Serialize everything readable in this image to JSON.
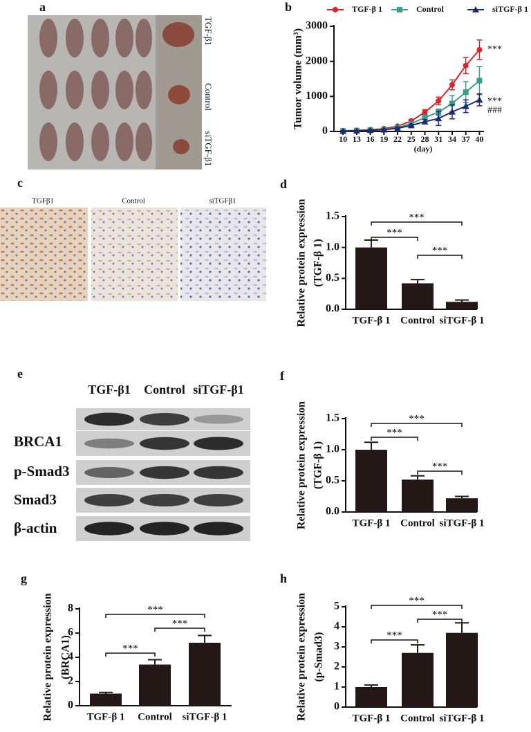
{
  "figure": {
    "a": {
      "letter": "a",
      "labels": [
        "TGF-β1",
        "Control",
        "siTGF-β1"
      ]
    },
    "c": {
      "letter": "c",
      "labels": [
        "TGFβ1",
        "Control",
        "siTGFβ1"
      ]
    },
    "e": {
      "letter": "e",
      "columns": [
        "TGF-β1",
        "Control",
        "siTGF-β1"
      ],
      "rows": [
        "BRCA1",
        "p-Smad3",
        "Smad3",
        "β-actin"
      ]
    }
  },
  "chart_data": [
    {
      "type": "line",
      "panel": "b",
      "ylabel": [
        "Tumor volume (mm³)"
      ],
      "xlabel": "(day)",
      "x": [
        10,
        13,
        16,
        19,
        22,
        25,
        28,
        31,
        34,
        37,
        40
      ],
      "xlim": [
        8,
        41
      ],
      "xticks": [
        10,
        13,
        16,
        19,
        22,
        25,
        28,
        31,
        34,
        37,
        40
      ],
      "ylim": [
        0,
        3000
      ],
      "yticks": [
        0,
        1000,
        2000,
        3000
      ],
      "series": [
        {
          "name": "TGF-β 1",
          "color": "#d7262b",
          "marker": "circle",
          "values": [
            20,
            30,
            50,
            80,
            150,
            300,
            550,
            870,
            1330,
            1880,
            2330
          ],
          "errors": [
            10,
            10,
            15,
            20,
            30,
            40,
            70,
            110,
            140,
            230,
            280
          ]
        },
        {
          "name": "Control",
          "color": "#3a9c8c",
          "marker": "square",
          "values": [
            15,
            25,
            40,
            60,
            110,
            220,
            400,
            550,
            800,
            1120,
            1450
          ],
          "errors": [
            10,
            10,
            15,
            20,
            30,
            40,
            60,
            90,
            220,
            300,
            400
          ]
        },
        {
          "name": "siTGF-β 1",
          "color": "#1e2a6e",
          "marker": "triangle",
          "values": [
            10,
            20,
            35,
            50,
            90,
            170,
            280,
            370,
            560,
            720,
            900
          ],
          "errors": [
            10,
            10,
            15,
            20,
            30,
            40,
            60,
            200,
            200,
            180,
            170
          ]
        }
      ],
      "annotations": [
        "***",
        "***",
        "###"
      ]
    },
    {
      "type": "bar",
      "panel": "d",
      "ylabel": [
        "Relative protein expression",
        "(TGF-β 1)"
      ],
      "categories": [
        "TGF-β 1",
        "Control",
        "siTGF-β 1"
      ],
      "values": [
        1.0,
        0.42,
        0.12
      ],
      "errors": [
        0.12,
        0.06,
        0.03
      ],
      "color": "#231815",
      "ylim": [
        0,
        1.5
      ],
      "yticks": [
        {
          "value": 0,
          "label": "0.0"
        },
        0.5,
        {
          "value": 1,
          "label": "1.0"
        },
        1.5
      ],
      "annotations": [
        "***",
        "***",
        "***"
      ]
    },
    {
      "type": "bar",
      "panel": "f",
      "ylabel": [
        "Relative protein expression",
        "(TGF-β 1)"
      ],
      "categories": [
        "TGF-β 1",
        "Control",
        "siTGF-β 1"
      ],
      "values": [
        1.0,
        0.52,
        0.22
      ],
      "errors": [
        0.12,
        0.06,
        0.03
      ],
      "color": "#231815",
      "ylim": [
        0,
        1.5
      ],
      "yticks": [
        {
          "value": 0,
          "label": "0.0"
        },
        0.5,
        {
          "value": 1,
          "label": "1.0"
        },
        1.5
      ],
      "annotations": [
        "***",
        "***",
        "***"
      ]
    },
    {
      "type": "bar",
      "panel": "g",
      "ylabel": [
        "Relative protein expression",
        "(BRCA1)"
      ],
      "categories": [
        "TGF-β 1",
        "Control",
        "siTGF-β 1"
      ],
      "values": [
        1.0,
        3.4,
        5.2
      ],
      "errors": [
        0.1,
        0.4,
        0.6
      ],
      "color": "#231815",
      "ylim": [
        0,
        8
      ],
      "yticks": [
        0,
        2,
        4,
        6,
        8
      ],
      "annotations": [
        "***",
        "***",
        "***"
      ]
    },
    {
      "type": "bar",
      "panel": "h",
      "ylabel": [
        "Relative protein expression",
        "(p-Smad3)"
      ],
      "categories": [
        "TGF-β 1",
        "Control",
        "siTGF-β 1"
      ],
      "values": [
        1.0,
        2.7,
        3.7
      ],
      "errors": [
        0.1,
        0.4,
        0.5
      ],
      "color": "#231815",
      "ylim": [
        0,
        5
      ],
      "yticks": [
        0,
        1,
        2,
        3,
        4,
        5
      ],
      "annotations": [
        "***",
        "***",
        "***"
      ]
    }
  ]
}
